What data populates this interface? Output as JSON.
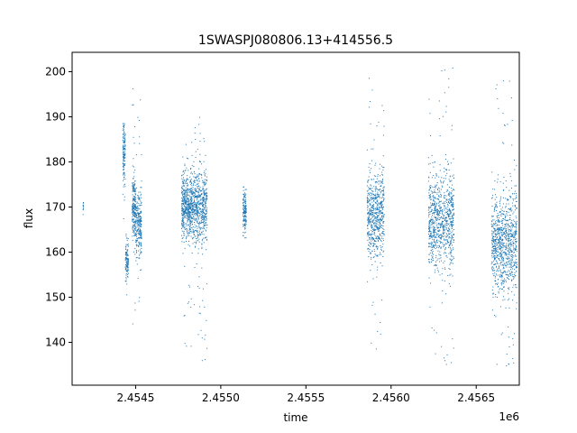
{
  "chart_data": {
    "type": "scatter",
    "title": "1SWASPJ080806.13+414556.5",
    "xlabel": "time",
    "ylabel": "flux",
    "x_offset_label": "1e6",
    "xlim": [
      2454127,
      2456753
    ],
    "ylim": [
      130.5,
      204.3
    ],
    "x_ticks": [
      2.4545,
      2.455,
      2.4555,
      2.456,
      2.4565
    ],
    "x_tick_labels": [
      "2.4545",
      "2.4550",
      "2.4555",
      "2.4560",
      "2.4565"
    ],
    "y_ticks": [
      140,
      150,
      160,
      170,
      180,
      190,
      200
    ],
    "y_tick_labels": [
      "140",
      "150",
      "160",
      "170",
      "180",
      "190",
      "200"
    ],
    "grid": false,
    "point_color": "#1f77b4",
    "clusters": [
      {
        "x_start": 2454191,
        "x_end": 2454194,
        "y_center": 170,
        "y_spread": 1.2,
        "n": 12,
        "y_min": 162,
        "y_max": 171
      },
      {
        "x_start": 2454425,
        "x_end": 2454440,
        "y_center": 182,
        "y_spread": 4,
        "n": 140,
        "y_min": 165,
        "y_max": 188.5
      },
      {
        "x_start": 2454440,
        "x_end": 2454458,
        "y_center": 158,
        "y_spread": 2.2,
        "n": 120,
        "y_min": 150,
        "y_max": 164
      },
      {
        "x_start": 2454480,
        "x_end": 2454500,
        "y_center": 170,
        "y_spread": 3.5,
        "n": 220,
        "y_min": 142,
        "y_max": 200
      },
      {
        "x_start": 2454500,
        "x_end": 2454535,
        "y_center": 166,
        "y_spread": 3.5,
        "n": 260,
        "y_min": 145,
        "y_max": 195
      },
      {
        "x_start": 2454770,
        "x_end": 2454830,
        "y_center": 170,
        "y_spread": 3.5,
        "n": 520,
        "y_min": 139,
        "y_max": 185
      },
      {
        "x_start": 2454830,
        "x_end": 2454920,
        "y_center": 170,
        "y_spread": 4,
        "n": 620,
        "y_min": 135,
        "y_max": 190
      },
      {
        "x_start": 2455130,
        "x_end": 2455150,
        "y_center": 169,
        "y_spread": 2.2,
        "n": 150,
        "y_min": 163,
        "y_max": 176
      },
      {
        "x_start": 2455860,
        "x_end": 2455960,
        "y_center": 168,
        "y_spread": 4.5,
        "n": 650,
        "y_min": 135,
        "y_max": 200
      },
      {
        "x_start": 2456220,
        "x_end": 2456370,
        "y_center": 167,
        "y_spread": 5,
        "n": 900,
        "y_min": 134,
        "y_max": 201
      },
      {
        "x_start": 2456590,
        "x_end": 2456740,
        "y_center": 162,
        "y_spread": 5.5,
        "n": 950,
        "y_min": 134,
        "y_max": 200
      }
    ]
  }
}
